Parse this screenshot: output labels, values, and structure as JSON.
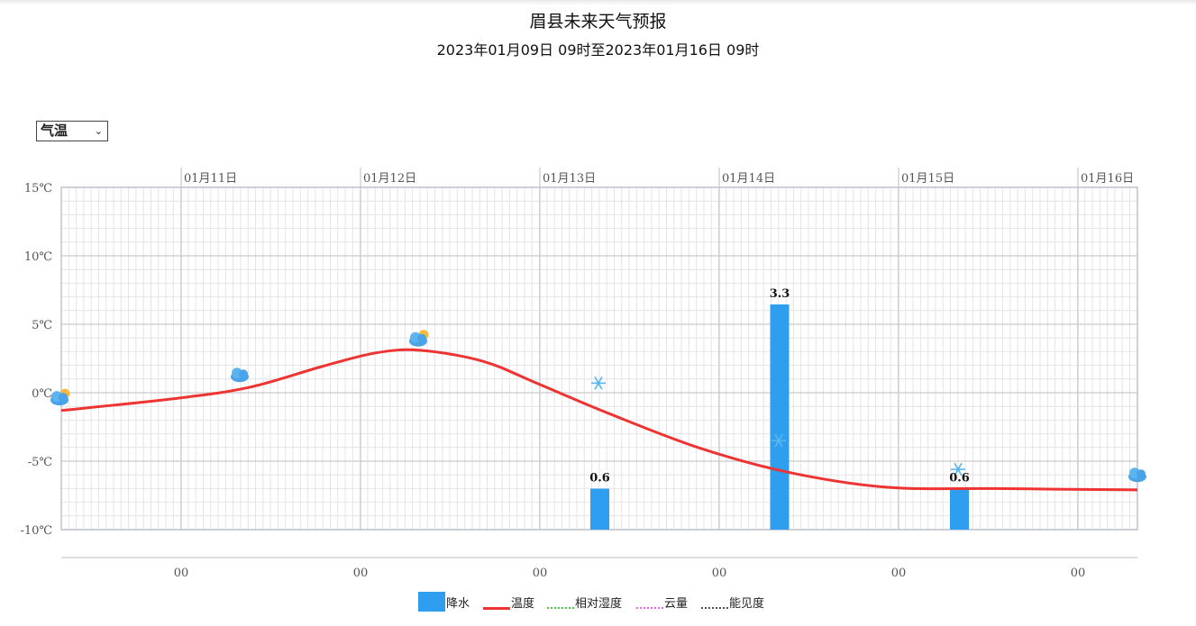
{
  "header": {
    "title": "眉县未来天气预报",
    "subtitle": "2023年01月09日 09时至2023年01月16日 09时"
  },
  "controls": {
    "element_select": {
      "selected": "气温"
    }
  },
  "chart_data": {
    "type": "line",
    "y_unit": "℃",
    "y_ticks": [
      "15℃",
      "10℃",
      "5℃",
      "0℃",
      "-5℃",
      "-10℃"
    ],
    "ylim": [
      -10,
      15
    ],
    "top_date_labels": [
      "01月11日",
      "01月12日",
      "01月13日",
      "01月14日",
      "01月15日",
      "01月16日"
    ],
    "bottom_hour_labels": [
      "00",
      "00",
      "00",
      "00",
      "00",
      "00"
    ],
    "grid": true,
    "series": [
      {
        "name": "温度",
        "color": "#ee3333",
        "points": [
          {
            "d": 0.0,
            "y": -1.3
          },
          {
            "d": 0.65,
            "y": -0.4
          },
          {
            "d": 1.05,
            "y": 0.4
          },
          {
            "d": 1.45,
            "y": 1.9
          },
          {
            "d": 1.75,
            "y": 2.9
          },
          {
            "d": 2.0,
            "y": 3.1
          },
          {
            "d": 2.35,
            "y": 2.3
          },
          {
            "d": 2.65,
            "y": 0.7
          },
          {
            "d": 3.05,
            "y": -1.5
          },
          {
            "d": 3.55,
            "y": -4.0
          },
          {
            "d": 4.05,
            "y": -5.8
          },
          {
            "d": 4.6,
            "y": -6.9
          },
          {
            "d": 5.2,
            "y": -7.0
          },
          {
            "d": 6.0,
            "y": -7.1
          }
        ]
      },
      {
        "name": "降水",
        "color": "#2e9ff0",
        "bars": [
          {
            "d": 3.0,
            "value": 0.6,
            "label": "0.6"
          },
          {
            "d": 4.0,
            "value": 3.3,
            "label": "3.3"
          },
          {
            "d": 5.0,
            "value": 0.6,
            "label": "0.6"
          }
        ]
      }
    ],
    "weather_icons": [
      {
        "d": 0.0,
        "y": -0.4,
        "icon": "partly-cloudy-icon"
      },
      {
        "d": 1.0,
        "y": 1.3,
        "icon": "cloudy-icon"
      },
      {
        "d": 2.0,
        "y": 3.9,
        "icon": "partly-cloudy-icon"
      },
      {
        "d": 3.0,
        "y": 0.7,
        "icon": "snow-icon"
      },
      {
        "d": 4.0,
        "y": -3.5,
        "icon": "snow-icon"
      },
      {
        "d": 5.0,
        "y": -5.6,
        "icon": "snow-icon"
      },
      {
        "d": 6.0,
        "y": -6.0,
        "icon": "cloudy-icon"
      }
    ]
  },
  "legend": [
    {
      "key": "precip",
      "label": "降水",
      "color": "#2e9ff0",
      "style": "box"
    },
    {
      "key": "temp",
      "label": "温度",
      "color": "#ee3333",
      "style": "solid"
    },
    {
      "key": "rh",
      "label": "相对湿度",
      "color": "#44cc44",
      "style": "dotted"
    },
    {
      "key": "cloud",
      "label": "云量",
      "color": "#dd66dd",
      "style": "dotted"
    },
    {
      "key": "vis",
      "label": "能见度",
      "color": "#555555",
      "style": "dotted"
    }
  ]
}
